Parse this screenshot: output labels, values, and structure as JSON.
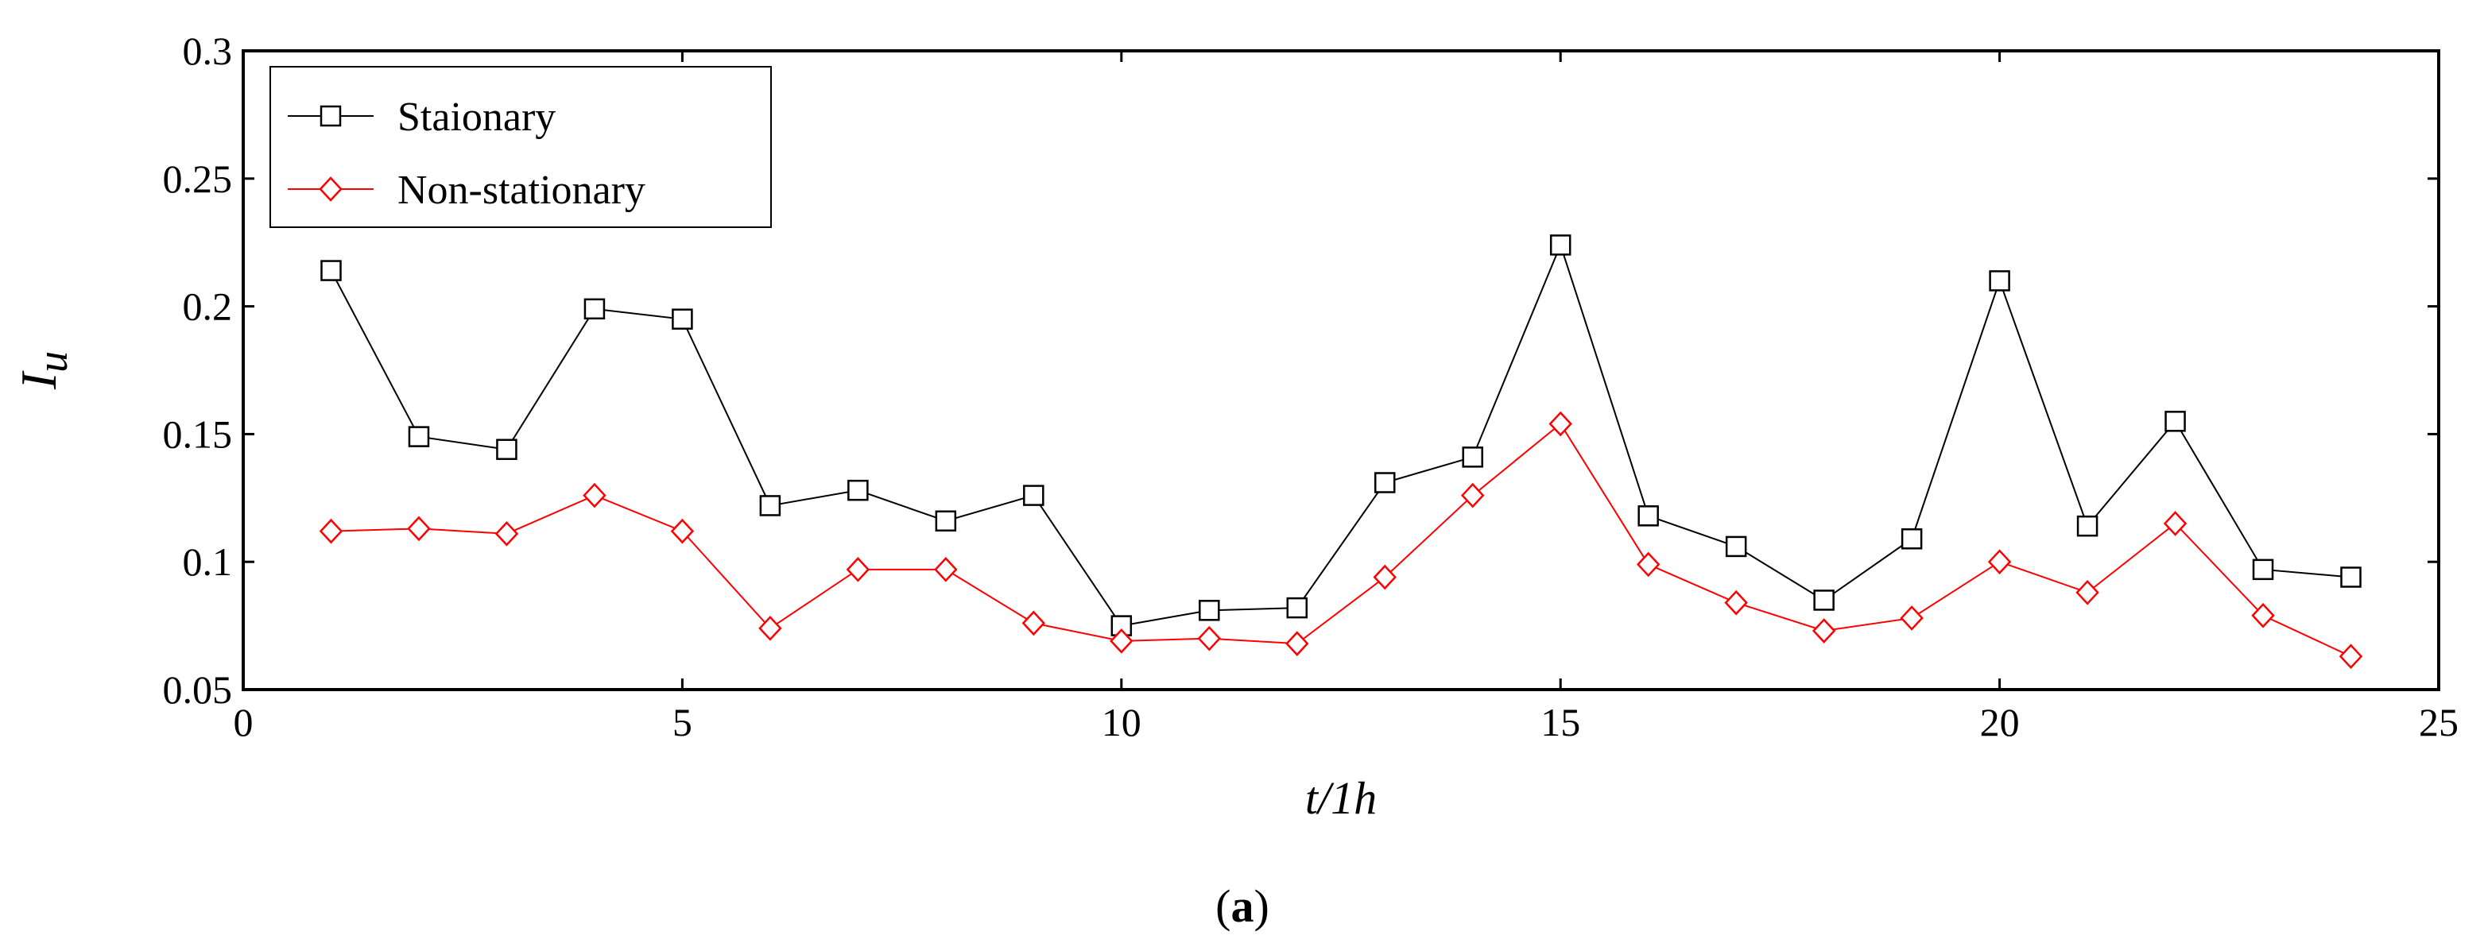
{
  "chart_data": {
    "type": "line",
    "xlabel": "t/1h",
    "ylabel": "I",
    "ylabel_sub": "u",
    "xlim": [
      0,
      25
    ],
    "ylim": [
      0.05,
      0.3
    ],
    "xticks": [
      "0",
      "5",
      "10",
      "15",
      "20",
      "25"
    ],
    "yticks": [
      "0.05",
      "0.1",
      "0.15",
      "0.2",
      "0.25",
      "0.3"
    ],
    "grid": false,
    "legend": "top-left",
    "x": [
      1,
      2,
      3,
      4,
      5,
      6,
      7,
      8,
      9,
      10,
      11,
      12,
      13,
      14,
      15,
      16,
      17,
      18,
      19,
      20,
      21,
      22,
      23,
      24
    ],
    "series": [
      {
        "name": "Staionary",
        "color": "#000000",
        "marker": "square",
        "values": [
          0.214,
          0.149,
          0.144,
          0.199,
          0.195,
          0.122,
          0.128,
          0.116,
          0.126,
          0.075,
          0.081,
          0.082,
          0.131,
          0.141,
          0.224,
          0.118,
          0.106,
          0.085,
          0.109,
          0.21,
          0.114,
          0.155,
          0.097,
          0.094
        ]
      },
      {
        "name": "Non-stationary",
        "color": "#ff0000",
        "marker": "diamond",
        "values": [
          0.112,
          0.113,
          0.111,
          0.126,
          0.112,
          0.074,
          0.097,
          0.097,
          0.076,
          0.069,
          0.07,
          0.068,
          0.094,
          0.126,
          0.154,
          0.099,
          0.084,
          0.073,
          0.078,
          0.1,
          0.088,
          0.115,
          0.079,
          0.063
        ]
      }
    ]
  },
  "caption": {
    "open": "(",
    "letter": "a",
    "close": ")"
  }
}
